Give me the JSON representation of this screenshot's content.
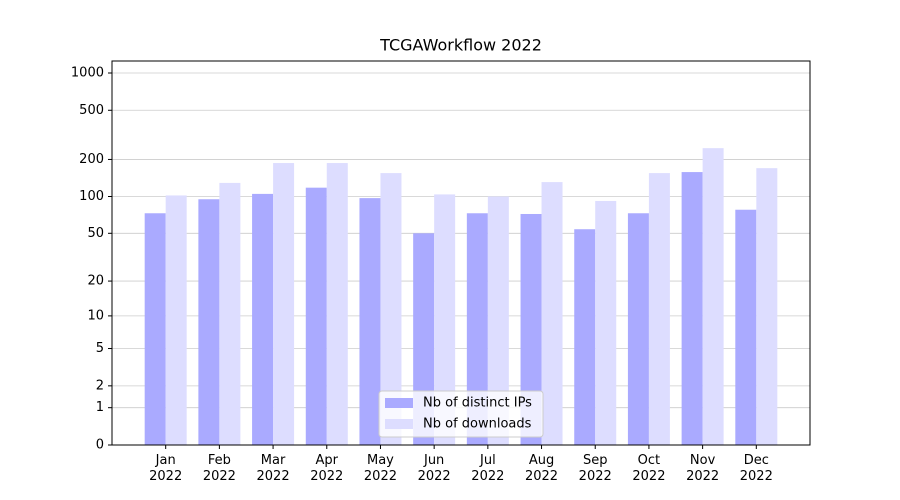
{
  "chart_data": {
    "type": "bar",
    "title": "TCGAWorkflow 2022",
    "categories": [
      "Jan\n2022",
      "Feb\n2022",
      "Mar\n2022",
      "Apr\n2022",
      "May\n2022",
      "Jun\n2022",
      "Jul\n2022",
      "Aug\n2022",
      "Sep\n2022",
      "Oct\n2022",
      "Nov\n2022",
      "Dec\n2022"
    ],
    "series": [
      {
        "name": "Nb of distinct IPs",
        "color": "#aaaaff",
        "values": [
          73,
          95,
          105,
          118,
          97,
          50,
          73,
          72,
          54,
          73,
          158,
          78
        ]
      },
      {
        "name": "Nb of downloads",
        "color": "#ddddff",
        "values": [
          102,
          129,
          187,
          187,
          155,
          104,
          100,
          131,
          92,
          155,
          247,
          170
        ]
      }
    ],
    "y_scale": "log1p",
    "ylim": [
      0,
      1250
    ],
    "yticks": [
      0,
      1,
      2,
      5,
      10,
      20,
      50,
      100,
      200,
      500,
      1000
    ],
    "grid": true,
    "legend": "lower center"
  }
}
